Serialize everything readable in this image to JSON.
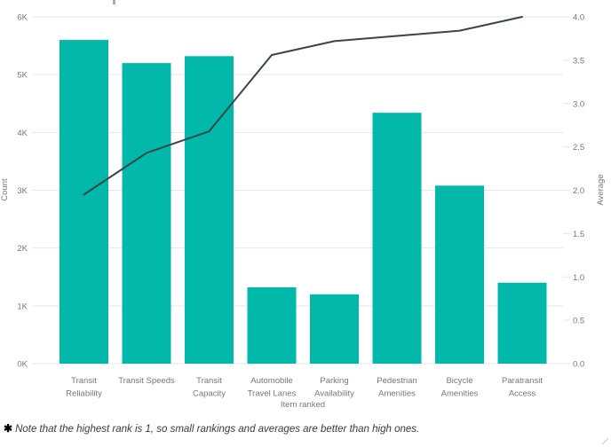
{
  "chart_data": {
    "type": "bar",
    "subtype": "combo-bar-line-dual-axis",
    "categories": [
      "Transit Reliability",
      "Transit Speeds",
      "Transit Capacity",
      "Automobile Travel Lanes",
      "Parking Availability",
      "Pedestrian Amenities",
      "Bicycle Amenities",
      "Paratransit Access"
    ],
    "category_label_lines": [
      [
        "Transit",
        "Reliability"
      ],
      [
        "Transit Speeds"
      ],
      [
        "Transit",
        "Capacity"
      ],
      [
        "Automobile",
        "Travel Lanes"
      ],
      [
        "Parking",
        "Availability"
      ],
      [
        "Pedestrian",
        "Amenities"
      ],
      [
        "Bicycle",
        "Amenities"
      ],
      [
        "Paratransit",
        "Access"
      ]
    ],
    "series": [
      {
        "name": "Count",
        "type": "bar",
        "axis": "left",
        "color": "#01B8AA",
        "values": [
          5600,
          5200,
          5320,
          1320,
          1200,
          4340,
          3080,
          1400
        ]
      },
      {
        "name": "Average",
        "type": "line",
        "axis": "right",
        "color": "#374649",
        "values": [
          1.95,
          2.43,
          2.68,
          3.56,
          3.72,
          3.78,
          3.84,
          4.0
        ]
      }
    ],
    "xlabel": "Item ranked",
    "ylabel_left": "Count",
    "ylabel_right": "Average",
    "y_left_ticks": [
      "0K",
      "1K",
      "2K",
      "3K",
      "4K",
      "5K",
      "6K"
    ],
    "y_left_range": [
      0,
      6000
    ],
    "y_right_ticks": [
      "0.0",
      "0.5",
      "1.0",
      "1.5",
      "2.0",
      "2.5",
      "3.0",
      "3.5",
      "4.0"
    ],
    "y_right_range": [
      0,
      4
    ],
    "grid": "horizontal-on",
    "legend": "none"
  },
  "footnote": {
    "marker": "✱",
    "text": "Note that the highest rank is 1, so small rankings and averages are better than high ones."
  },
  "colors": {
    "bar": "#01B8AA",
    "line": "#374649",
    "grid": "#e6e6e6",
    "tick_text": "#777777",
    "note_text": "#3a3a3a"
  }
}
